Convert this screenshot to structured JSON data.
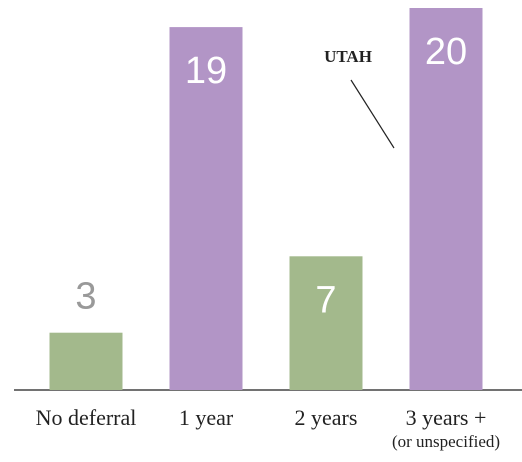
{
  "chart_data": {
    "type": "bar",
    "categories": [
      "No deferral",
      "1 year",
      "2 years",
      "3 years +"
    ],
    "category_notes": [
      null,
      null,
      null,
      "(or unspecified)"
    ],
    "values": [
      3,
      19,
      7,
      20
    ],
    "colors": [
      "#a3b98c",
      "#b295c6",
      "#a3b98c",
      "#b295c6"
    ],
    "ylim": [
      0,
      20
    ],
    "annotations": [
      {
        "text": "UTAH",
        "category": 3
      }
    ]
  }
}
